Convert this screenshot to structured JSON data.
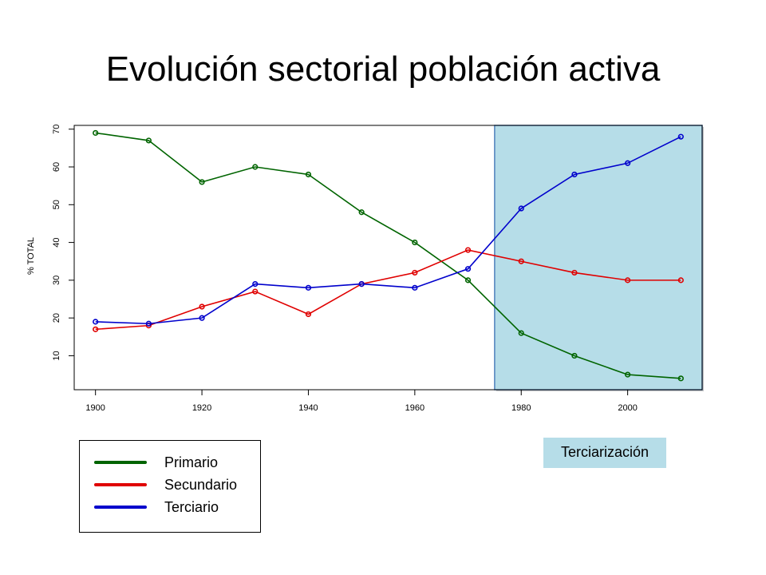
{
  "title": "Evolución sectorial población activa",
  "chart_data": {
    "type": "line",
    "title": "",
    "xlabel": "",
    "ylabel": "% TOTAL",
    "x": [
      1900,
      1910,
      1920,
      1930,
      1940,
      1950,
      1960,
      1970,
      1980,
      1990,
      2000,
      2010
    ],
    "xlim": [
      1896,
      2014
    ],
    "ylim": [
      1,
      71
    ],
    "xticks": [
      1900,
      1920,
      1940,
      1960,
      1980,
      2000
    ],
    "yticks": [
      10,
      20,
      30,
      40,
      50,
      60,
      70
    ],
    "xtick_labels": [
      "1900",
      "1920",
      "1940",
      "1960",
      "1980",
      "2000"
    ],
    "ytick_labels": [
      "10",
      "20",
      "30",
      "40",
      "50",
      "60",
      "70"
    ],
    "grid": false,
    "series": [
      {
        "name": "Primario",
        "color": "#006400",
        "values": [
          69,
          67,
          56,
          60,
          58,
          48,
          40,
          30,
          16,
          10,
          5,
          4
        ]
      },
      {
        "name": "Secundario",
        "color": "#e00000",
        "values": [
          17,
          18,
          23,
          27,
          21,
          29,
          32,
          38,
          35,
          32,
          30,
          30
        ]
      },
      {
        "name": "Terciario",
        "color": "#0000cc",
        "values": [
          19,
          18.5,
          20,
          29,
          28,
          29,
          28,
          33,
          49,
          58,
          61,
          68
        ]
      }
    ],
    "highlight": {
      "x_start": 1975,
      "x_end": 2014,
      "color": "#b6dde8",
      "border": "#4f81bd"
    }
  },
  "legend": {
    "items": [
      {
        "label": "Primario",
        "color": "#006400"
      },
      {
        "label": "Secundario",
        "color": "#e00000"
      },
      {
        "label": "Terciario",
        "color": "#0000cc"
      }
    ]
  },
  "annotation": {
    "label": "Terciarización",
    "color": "#b6dde8"
  }
}
